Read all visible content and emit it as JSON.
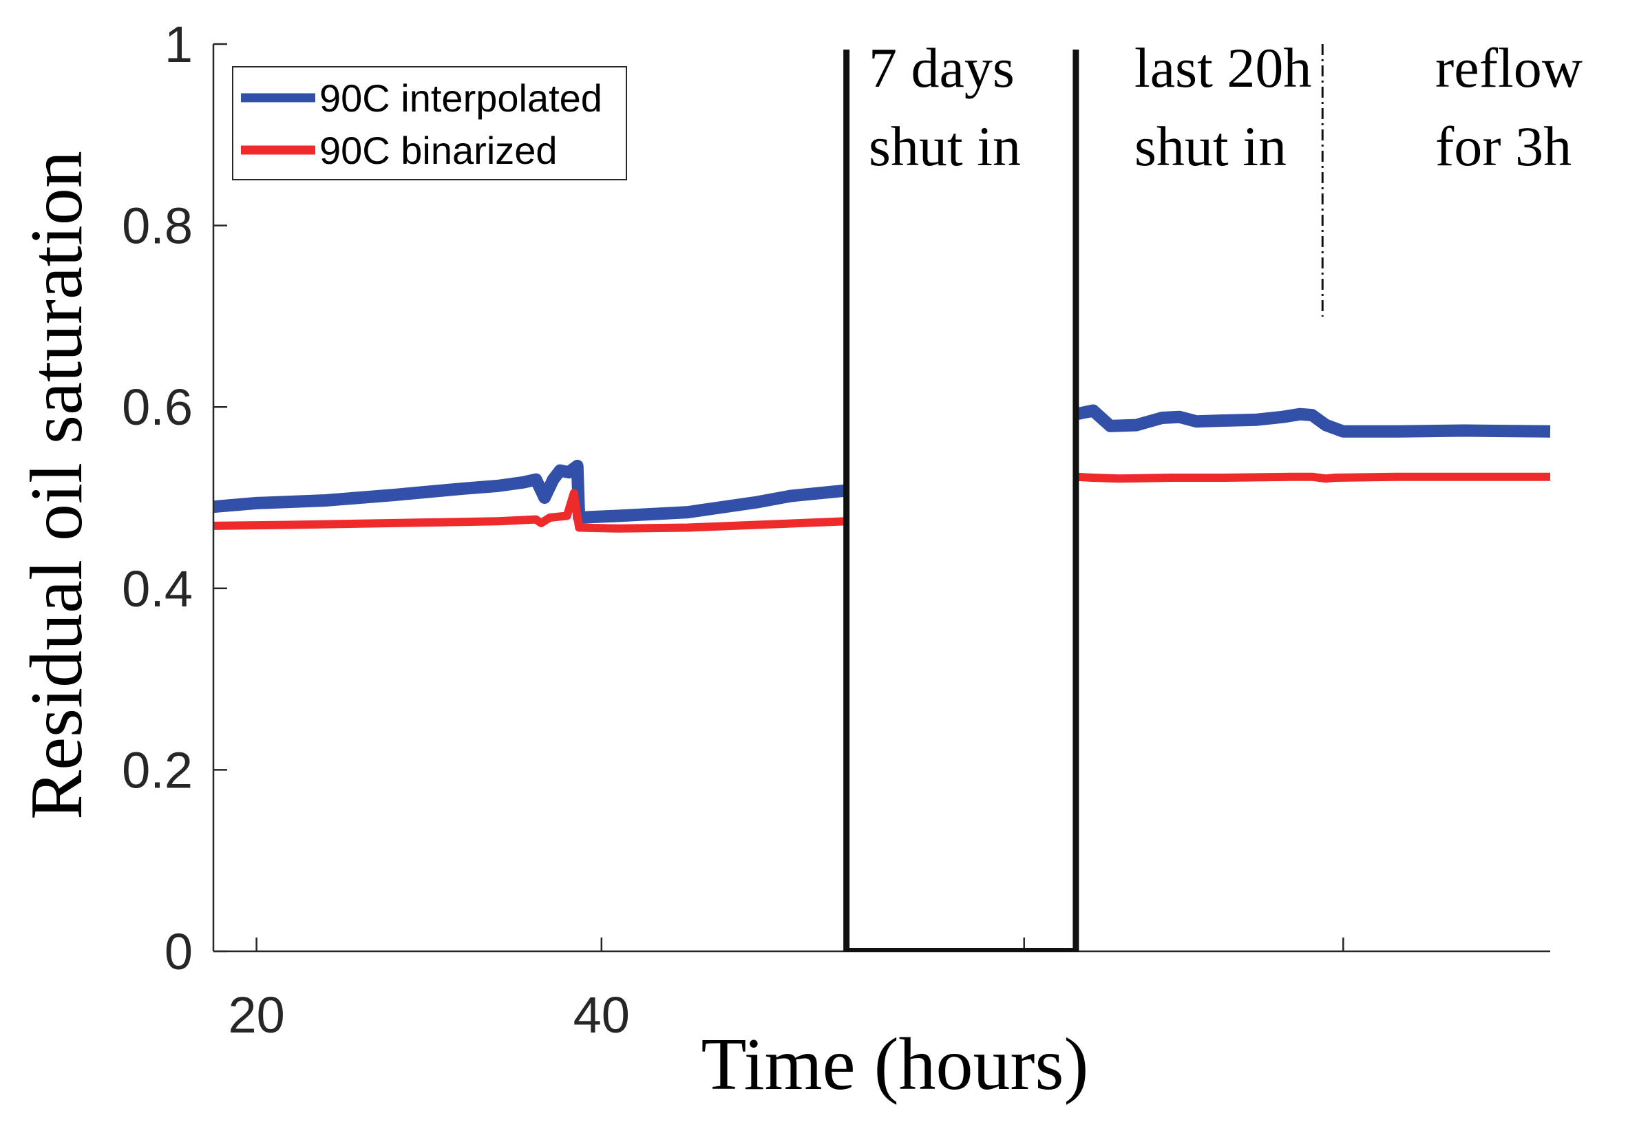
{
  "chart_data": {
    "type": "line",
    "ylabel": "Residual oil saturation",
    "xlabel": "Time (hours)",
    "ylim": [
      0,
      1
    ],
    "yticks": [
      0,
      0.2,
      0.4,
      0.6,
      0.8,
      1
    ],
    "ytick_labels": [
      "0",
      "0.2",
      "0.4",
      "0.6",
      "0.8",
      "1"
    ],
    "xlim": [
      17.5,
      95
    ],
    "xticks": [
      20,
      40,
      64.5,
      83
    ],
    "xtick_labels": [
      "20",
      "40",
      "",
      ""
    ],
    "grid": false,
    "legend": {
      "placement": "top-left",
      "entries": [
        "90C interpolated",
        "90C binarized"
      ]
    },
    "annotations": [
      {
        "id": "shutin7",
        "lines": [
          "7 days",
          "shut in"
        ]
      },
      {
        "id": "last20",
        "lines": [
          "last 20h",
          "shut in"
        ]
      },
      {
        "id": "reflow",
        "lines": [
          "reflow",
          "for 3h"
        ]
      }
    ],
    "shut_in_gap": {
      "x_start": 54.2,
      "x_end": 67.5
    },
    "reflow_marker_x": 81.8,
    "series": [
      {
        "name": "90C interpolated",
        "color": "#3350a8",
        "segments": [
          [
            [
              17.5,
              0.49
            ],
            [
              20,
              0.494
            ],
            [
              24,
              0.497
            ],
            [
              28,
              0.503
            ],
            [
              32,
              0.51
            ],
            [
              34,
              0.513
            ],
            [
              35.5,
              0.517
            ],
            [
              36.2,
              0.52
            ],
            [
              36.7,
              0.5
            ],
            [
              37.2,
              0.52
            ],
            [
              37.6,
              0.53
            ],
            [
              38.1,
              0.528
            ],
            [
              38.6,
              0.535
            ],
            [
              38.7,
              0.478
            ],
            [
              41,
              0.48
            ],
            [
              45,
              0.484
            ],
            [
              49,
              0.495
            ],
            [
              51,
              0.502
            ],
            [
              54.2,
              0.508
            ]
          ],
          [
            [
              67.5,
              0.592
            ],
            [
              68.5,
              0.596
            ],
            [
              69.5,
              0.579
            ],
            [
              71,
              0.58
            ],
            [
              72.5,
              0.588
            ],
            [
              73.5,
              0.589
            ],
            [
              74.5,
              0.584
            ],
            [
              76,
              0.585
            ],
            [
              78,
              0.586
            ],
            [
              79.5,
              0.589
            ],
            [
              80.5,
              0.592
            ],
            [
              81.2,
              0.591
            ],
            [
              82,
              0.58
            ],
            [
              83,
              0.573
            ],
            [
              86,
              0.573
            ],
            [
              90,
              0.574
            ],
            [
              95,
              0.573
            ]
          ]
        ]
      },
      {
        "name": "90C binarized",
        "color": "#ee2a2a",
        "segments": [
          [
            [
              17.5,
              0.469
            ],
            [
              22,
              0.47
            ],
            [
              28,
              0.472
            ],
            [
              34,
              0.474
            ],
            [
              36.2,
              0.476
            ],
            [
              36.5,
              0.472
            ],
            [
              37,
              0.478
            ],
            [
              38,
              0.48
            ],
            [
              38.4,
              0.505
            ],
            [
              38.7,
              0.467
            ],
            [
              41,
              0.466
            ],
            [
              45,
              0.467
            ],
            [
              49,
              0.47
            ],
            [
              54.2,
              0.474
            ]
          ],
          [
            [
              67.5,
              0.523
            ],
            [
              68.5,
              0.522
            ],
            [
              70,
              0.521
            ],
            [
              73,
              0.522
            ],
            [
              76,
              0.522
            ],
            [
              80,
              0.523
            ],
            [
              81.2,
              0.523
            ],
            [
              82,
              0.521
            ],
            [
              82.5,
              0.522
            ],
            [
              86,
              0.523
            ],
            [
              95,
              0.523
            ]
          ]
        ]
      }
    ]
  }
}
